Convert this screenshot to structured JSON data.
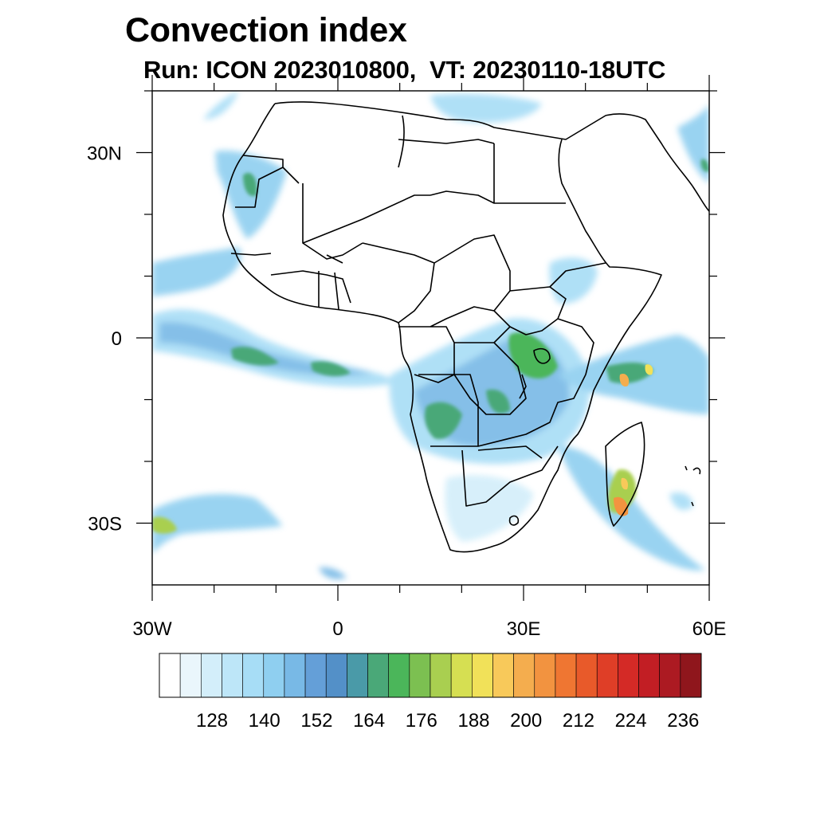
{
  "title": "Convection index",
  "subtitle": "Run: ICON 2023010800,  VT: 20230110-18UTC",
  "map": {
    "lon_range": [
      -30,
      60
    ],
    "lat_range": [
      -40,
      40
    ],
    "x_ticks": [
      {
        "lon": -30,
        "label": "30W"
      },
      {
        "lon": 0,
        "label": "0"
      },
      {
        "lon": 30,
        "label": "30E"
      },
      {
        "lon": 60,
        "label": "60E"
      }
    ],
    "y_ticks": [
      {
        "lat": 30,
        "label": "30N"
      },
      {
        "lat": 0,
        "label": "0"
      },
      {
        "lat": -30,
        "label": "30S"
      }
    ]
  },
  "colorbar": {
    "colors": [
      "#ffffff",
      "#eaf6fc",
      "#d3eefa",
      "#bde6f8",
      "#a7ddf6",
      "#8fcff0",
      "#78b9e6",
      "#649fd8",
      "#5390c8",
      "#4a9aa8",
      "#4aa878",
      "#4bb65a",
      "#7cc051",
      "#a9cf50",
      "#d6df52",
      "#f1e159",
      "#f8c95a",
      "#f4ad4e",
      "#f29340",
      "#ef7632",
      "#e85a2a",
      "#df3e27",
      "#d42a26",
      "#c21e24",
      "#ac1a22",
      "#8f161c"
    ],
    "labels": [
      "128",
      "140",
      "152",
      "164",
      "176",
      "188",
      "200",
      "212",
      "224",
      "236"
    ]
  }
}
